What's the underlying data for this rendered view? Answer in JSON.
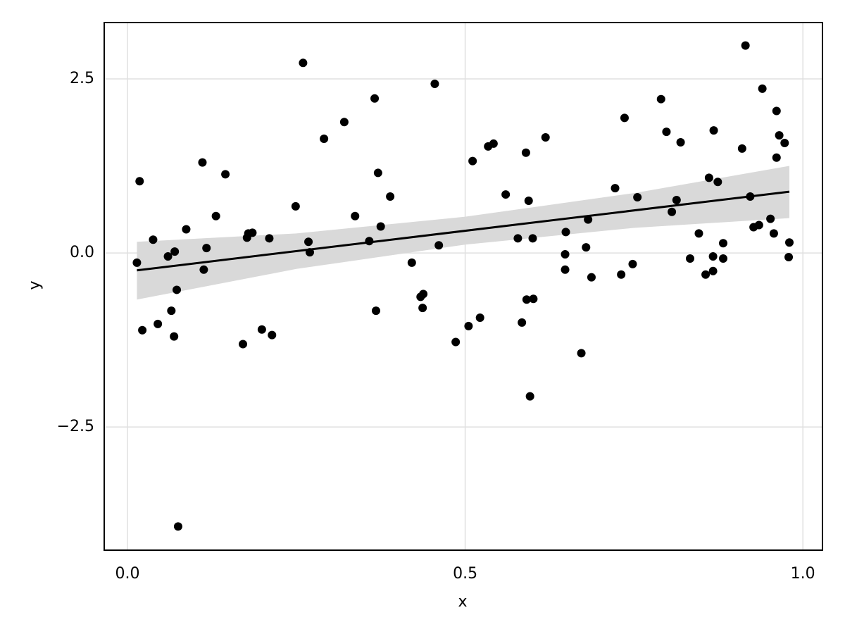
{
  "chart_data": {
    "type": "scatter",
    "xlabel": "x",
    "ylabel": "y",
    "grid": true,
    "color": "#000000",
    "band_color": "#d9d9d9",
    "xlim": [
      -0.0344,
      1.029
    ],
    "ylim": [
      -4.27,
      3.31
    ],
    "xticks": [
      {
        "value": 0,
        "label": "0.0"
      },
      0.5,
      {
        "value": 1,
        "label": "1.0"
      }
    ],
    "yticks": [
      {
        "value": -2.5,
        "label": "−2.5"
      },
      {
        "value": 0,
        "label": "0.0"
      },
      2.5
    ],
    "points": {
      "x": [
        0.014,
        0.018,
        0.022,
        0.038,
        0.045,
        0.06,
        0.065,
        0.069,
        0.07,
        0.073,
        0.075,
        0.087,
        0.111,
        0.113,
        0.117,
        0.131,
        0.145,
        0.171,
        0.177,
        0.179,
        0.185,
        0.199,
        0.21,
        0.214,
        0.249,
        0.26,
        0.268,
        0.27,
        0.291,
        0.321,
        0.337,
        0.358,
        0.366,
        0.368,
        0.371,
        0.375,
        0.389,
        0.421,
        0.434,
        0.437,
        0.438,
        0.455,
        0.461,
        0.486,
        0.505,
        0.511,
        0.522,
        0.534,
        0.542,
        0.56,
        0.578,
        0.584,
        0.59,
        0.591,
        0.594,
        0.596,
        0.6,
        0.601,
        0.619,
        0.648,
        0.648,
        0.649,
        0.672,
        0.679,
        0.682,
        0.687,
        0.722,
        0.731,
        0.736,
        0.748,
        0.755,
        0.79,
        0.798,
        0.806,
        0.813,
        0.819,
        0.833,
        0.846,
        0.856,
        0.861,
        0.867,
        0.868,
        0.867,
        0.874,
        0.882,
        0.882,
        0.91,
        0.915,
        0.922,
        0.927,
        0.935,
        0.94,
        0.952,
        0.957,
        0.961,
        0.961,
        0.965,
        0.973,
        0.979,
        0.98
      ],
      "y": [
        -0.14,
        1.03,
        -1.11,
        0.19,
        -1.02,
        -0.05,
        -0.83,
        -1.2,
        0.02,
        -0.53,
        -3.93,
        0.34,
        1.3,
        -0.24,
        0.07,
        0.53,
        1.13,
        -1.31,
        0.22,
        0.28,
        0.29,
        -1.1,
        0.21,
        -1.18,
        0.67,
        2.73,
        0.16,
        0.01,
        1.64,
        1.88,
        0.53,
        0.17,
        2.22,
        -0.83,
        1.15,
        0.38,
        0.81,
        -0.14,
        -0.63,
        -0.79,
        -0.59,
        2.43,
        0.11,
        -1.28,
        -1.05,
        1.32,
        -0.93,
        1.53,
        1.57,
        0.84,
        0.21,
        -1.0,
        1.44,
        -0.67,
        0.75,
        -2.06,
        0.21,
        -0.66,
        1.66,
        -0.24,
        -0.02,
        0.3,
        -1.44,
        0.08,
        0.48,
        -0.35,
        0.93,
        -0.31,
        1.94,
        -0.16,
        0.8,
        2.21,
        1.74,
        0.59,
        0.76,
        1.59,
        -0.08,
        0.28,
        -0.31,
        1.08,
        -0.26,
        1.76,
        -0.05,
        1.02,
        -0.08,
        0.14,
        1.5,
        2.98,
        0.81,
        0.37,
        0.4,
        2.36,
        0.49,
        0.28,
        2.04,
        1.37,
        1.69,
        1.58,
        -0.06,
        0.15
      ]
    },
    "fit_line": {
      "x": [
        0.014,
        0.98
      ],
      "y": [
        -0.25,
        0.88
      ]
    },
    "fit_band": {
      "x": [
        0.014,
        0.25,
        0.5,
        0.75,
        0.98
      ],
      "upper": [
        0.16,
        0.28,
        0.52,
        0.86,
        1.25
      ],
      "lower": [
        -0.67,
        -0.23,
        0.12,
        0.36,
        0.5
      ]
    }
  }
}
